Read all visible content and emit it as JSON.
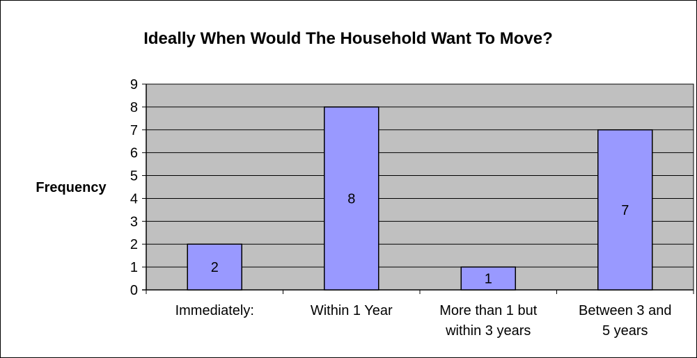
{
  "chart_data": {
    "type": "bar",
    "title": "Ideally When Would The Household Want To Move?",
    "xlabel": "",
    "ylabel": "Frequency",
    "categories": [
      [
        "Immediately:"
      ],
      [
        "Within 1 Year"
      ],
      [
        "More than 1 but",
        "within 3 years"
      ],
      [
        "Between 3 and",
        "5 years"
      ]
    ],
    "values": [
      2,
      8,
      1,
      7
    ],
    "data_labels": [
      "2",
      "8",
      "1",
      "7"
    ],
    "yticks": [
      "0",
      "1",
      "2",
      "3",
      "4",
      "5",
      "6",
      "7",
      "8",
      "9"
    ],
    "ylim": [
      0,
      9
    ],
    "grid": true,
    "legend": "none",
    "colors": {
      "plot_area": "#C0C0C0",
      "bar_fill": "#9999FF",
      "bar_stroke": "#000000",
      "gridline": "#000000",
      "frame": "#000000"
    }
  }
}
